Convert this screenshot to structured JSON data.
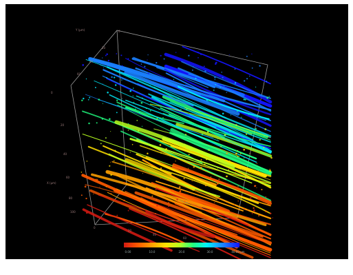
{
  "colorbar": {
    "ticks": [
      "0.00",
      "10.0",
      "20.0",
      "30.0",
      "40.00 µm"
    ],
    "colors": [
      "#d21a12",
      "#ff5a00",
      "#ffa000",
      "#ffe000",
      "#b8ff20",
      "#20ff80",
      "#00f0ff",
      "#1a80ff",
      "#1414ff"
    ]
  },
  "axes": {
    "y_unit_top": "Y (µm)",
    "y_unit_left": "X (µm)",
    "top_ticks": [
      "0",
      "20",
      "40",
      "60"
    ],
    "left_ticks": [
      "0",
      "20",
      "40",
      "60",
      "80",
      "100"
    ],
    "bottom_ticks": [
      "0",
      "20",
      "40",
      "60"
    ]
  }
}
